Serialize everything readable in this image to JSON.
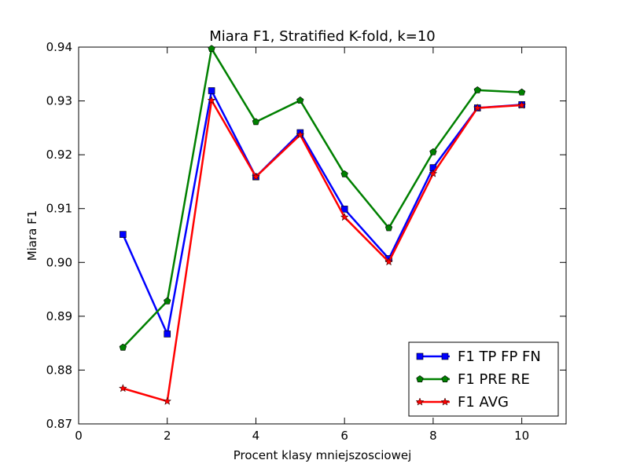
{
  "chart_data": {
    "type": "line",
    "title": "Miara F1, Stratified K-fold, k=10",
    "xlabel": "Procent klasy mniejszosciowej",
    "ylabel": "Miara F1",
    "xlim": [
      0,
      11
    ],
    "ylim": [
      0.87,
      0.94
    ],
    "xticks": [
      0,
      2,
      4,
      6,
      8,
      10
    ],
    "xtick_labels": [
      "0",
      "2",
      "4",
      "6",
      "8",
      "10"
    ],
    "yticks": [
      0.87,
      0.88,
      0.89,
      0.9,
      0.91,
      0.92,
      0.93,
      0.94
    ],
    "ytick_labels": [
      "0.87",
      "0.88",
      "0.89",
      "0.90",
      "0.91",
      "0.92",
      "0.93",
      "0.94"
    ],
    "grid": false,
    "legend_position": "bottom-right",
    "x": [
      1,
      2,
      3,
      4,
      5,
      6,
      7,
      8,
      9,
      10
    ],
    "series": [
      {
        "name": "F1 TP FP FN",
        "color": "#0000ff",
        "marker": "square",
        "values": [
          0.9052,
          0.8867,
          0.9319,
          0.9159,
          0.9241,
          0.9099,
          0.9007,
          0.9176,
          0.9287,
          0.9293
        ]
      },
      {
        "name": "F1 PRE RE",
        "color": "#008000",
        "marker": "pentagon",
        "values": [
          0.8842,
          0.8928,
          0.9397,
          0.9261,
          0.9301,
          0.9164,
          0.9064,
          0.9205,
          0.932,
          0.9316
        ]
      },
      {
        "name": "F1 AVG",
        "color": "#ff0000",
        "marker": "star",
        "values": [
          0.8766,
          0.8742,
          0.9301,
          0.9159,
          0.9237,
          0.9084,
          0.9001,
          0.9165,
          0.9287,
          0.9292
        ]
      }
    ]
  }
}
